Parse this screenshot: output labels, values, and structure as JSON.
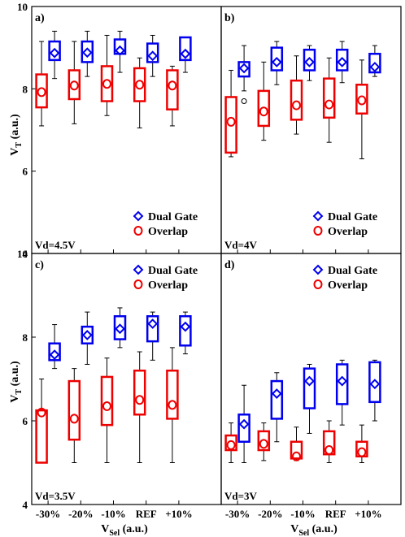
{
  "figure": {
    "xlabel_main": "V",
    "xlabel_sub": "Sel",
    "xlabel_unit": " (a.u.)",
    "ylabel_main": "V",
    "ylabel_sub": "T",
    "ylabel_unit": " (a.u.)"
  },
  "chart_data": [
    {
      "type": "box",
      "panel": "a)",
      "condition": "Vd=4.5V",
      "categories": [
        "-30%",
        "-20%",
        "-10%",
        "REF",
        "+10%"
      ],
      "ylim": [
        4,
        10
      ],
      "yticks": [
        4,
        6,
        8,
        10
      ],
      "legend": "bottom-right",
      "series": [
        {
          "name": "Dual Gate",
          "color": "#0000ee",
          "marker": "diamond",
          "boxes": [
            {
              "whisker_low": 8.25,
              "q1": 8.7,
              "mean": 8.87,
              "q3": 9.15,
              "whisker_high": 9.4
            },
            {
              "whisker_low": 8.3,
              "q1": 8.65,
              "mean": 8.88,
              "q3": 9.15,
              "whisker_high": 9.4
            },
            {
              "whisker_low": 8.4,
              "q1": 8.85,
              "mean": 8.93,
              "q3": 9.2,
              "whisker_high": 9.4
            },
            {
              "whisker_low": 8.3,
              "q1": 8.65,
              "mean": 8.8,
              "q3": 9.1,
              "whisker_high": 9.3
            },
            {
              "whisker_low": 8.4,
              "q1": 8.7,
              "mean": 8.85,
              "q3": 9.25,
              "whisker_high": 9.25
            }
          ]
        },
        {
          "name": "Overlap",
          "color": "#ee0000",
          "marker": "circle",
          "boxes": [
            {
              "whisker_low": 7.1,
              "q1": 7.55,
              "mean": 7.92,
              "q3": 8.35,
              "whisker_high": 9.15
            },
            {
              "whisker_low": 7.15,
              "q1": 7.75,
              "mean": 8.08,
              "q3": 8.45,
              "whisker_high": 9.15
            },
            {
              "whisker_low": 7.35,
              "q1": 7.7,
              "mean": 8.12,
              "q3": 8.55,
              "whisker_high": 9.3
            },
            {
              "whisker_low": 7.05,
              "q1": 7.7,
              "mean": 8.1,
              "q3": 8.5,
              "whisker_high": 8.75
            },
            {
              "whisker_low": 7.1,
              "q1": 7.5,
              "mean": 8.08,
              "q3": 8.45,
              "whisker_high": 8.55
            }
          ]
        }
      ]
    },
    {
      "type": "box",
      "panel": "b)",
      "condition": "Vd=4V",
      "categories": [
        "-30%",
        "-20%",
        "-10%",
        "REF",
        "+10%"
      ],
      "ylim": [
        4,
        10
      ],
      "yticks": [
        4,
        6,
        8,
        10
      ],
      "legend": "bottom-right",
      "series": [
        {
          "name": "Dual Gate",
          "color": "#0000ee",
          "marker": "diamond",
          "boxes": [
            {
              "whisker_low": 7.95,
              "q1": 8.3,
              "mean": 8.5,
              "q3": 8.65,
              "whisker_high": 9.05
            },
            {
              "whisker_low": 8.1,
              "q1": 8.45,
              "mean": 8.65,
              "q3": 9.0,
              "whisker_high": 9.15
            },
            {
              "whisker_low": 8.2,
              "q1": 8.45,
              "mean": 8.65,
              "q3": 8.95,
              "whisker_high": 9.05
            },
            {
              "whisker_low": 8.15,
              "q1": 8.45,
              "mean": 8.65,
              "q3": 8.95,
              "whisker_high": 9.15
            },
            {
              "whisker_low": 8.3,
              "q1": 8.4,
              "mean": 8.53,
              "q3": 8.85,
              "whisker_high": 9.05
            }
          ],
          "outliers": [
            {
              "category": "-30%",
              "value": 7.7
            }
          ]
        },
        {
          "name": "Overlap",
          "color": "#ee0000",
          "marker": "circle",
          "boxes": [
            {
              "whisker_low": 6.35,
              "q1": 6.45,
              "mean": 7.2,
              "q3": 7.8,
              "whisker_high": 8.45
            },
            {
              "whisker_low": 6.75,
              "q1": 7.1,
              "mean": 7.45,
              "q3": 7.95,
              "whisker_high": 8.65
            },
            {
              "whisker_low": 6.9,
              "q1": 7.25,
              "mean": 7.6,
              "q3": 8.2,
              "whisker_high": 8.8
            },
            {
              "whisker_low": 6.7,
              "q1": 7.3,
              "mean": 7.62,
              "q3": 8.25,
              "whisker_high": 8.75
            },
            {
              "whisker_low": 6.3,
              "q1": 7.4,
              "mean": 7.72,
              "q3": 8.1,
              "whisker_high": 8.7
            }
          ]
        }
      ]
    },
    {
      "type": "box",
      "panel": "c)",
      "condition": "Vd=3.5V",
      "categories": [
        "-30%",
        "-20%",
        "-10%",
        "REF",
        "+10%"
      ],
      "ylim": [
        4,
        10
      ],
      "yticks": [
        4,
        6,
        8,
        10
      ],
      "legend": "top-right",
      "series": [
        {
          "name": "Dual Gate",
          "color": "#0000ee",
          "marker": "diamond",
          "boxes": [
            {
              "whisker_low": 7.25,
              "q1": 7.45,
              "mean": 7.58,
              "q3": 7.85,
              "whisker_high": 8.3
            },
            {
              "whisker_low": 7.35,
              "q1": 7.85,
              "mean": 8.05,
              "q3": 8.25,
              "whisker_high": 8.6
            },
            {
              "whisker_low": 7.75,
              "q1": 7.95,
              "mean": 8.2,
              "q3": 8.5,
              "whisker_high": 8.7
            },
            {
              "whisker_low": 7.45,
              "q1": 7.9,
              "mean": 8.32,
              "q3": 8.5,
              "whisker_high": 8.6
            },
            {
              "whisker_low": 7.6,
              "q1": 7.8,
              "mean": 8.25,
              "q3": 8.5,
              "whisker_high": 8.6
            }
          ]
        },
        {
          "name": "Overlap",
          "color": "#ee0000",
          "marker": "circle",
          "boxes": [
            {
              "whisker_low": 5.0,
              "q1": 5.0,
              "mean": 6.2,
              "q3": 6.25,
              "whisker_high": 7.0
            },
            {
              "whisker_low": 5.0,
              "q1": 5.55,
              "mean": 6.05,
              "q3": 6.95,
              "whisker_high": 7.25
            },
            {
              "whisker_low": 5.0,
              "q1": 5.9,
              "mean": 6.35,
              "q3": 7.05,
              "whisker_high": 7.5
            },
            {
              "whisker_low": 5.0,
              "q1": 6.15,
              "mean": 6.5,
              "q3": 7.2,
              "whisker_high": 7.65
            },
            {
              "whisker_low": 5.0,
              "q1": 6.05,
              "mean": 6.38,
              "q3": 7.2,
              "whisker_high": 7.75
            }
          ]
        }
      ]
    },
    {
      "type": "box",
      "panel": "d)",
      "condition": "Vd=3V",
      "categories": [
        "-30%",
        "-20%",
        "-10%",
        "REF",
        "+10%"
      ],
      "ylim": [
        4,
        10
      ],
      "yticks": [
        4,
        6,
        8,
        10
      ],
      "legend": "top-right",
      "series": [
        {
          "name": "Dual Gate",
          "color": "#0000ee",
          "marker": "diamond",
          "boxes": [
            {
              "whisker_low": 5.0,
              "q1": 5.5,
              "mean": 5.92,
              "q3": 6.15,
              "whisker_high": 6.85
            },
            {
              "whisker_low": 5.5,
              "q1": 6.05,
              "mean": 6.65,
              "q3": 6.95,
              "whisker_high": 7.15
            },
            {
              "whisker_low": 5.7,
              "q1": 6.3,
              "mean": 6.95,
              "q3": 7.25,
              "whisker_high": 7.35
            },
            {
              "whisker_low": 5.9,
              "q1": 6.4,
              "mean": 6.95,
              "q3": 7.35,
              "whisker_high": 7.45
            },
            {
              "whisker_low": 6.0,
              "q1": 6.45,
              "mean": 6.88,
              "q3": 7.4,
              "whisker_high": 7.45
            }
          ]
        },
        {
          "name": "Overlap",
          "color": "#ee0000",
          "marker": "circle",
          "boxes": [
            {
              "whisker_low": 5.0,
              "q1": 5.3,
              "mean": 5.42,
              "q3": 5.65,
              "whisker_high": 5.95
            },
            {
              "whisker_low": 5.05,
              "q1": 5.3,
              "mean": 5.45,
              "q3": 5.75,
              "whisker_high": 5.95
            },
            {
              "whisker_low": 5.05,
              "q1": 5.1,
              "mean": 5.15,
              "q3": 5.5,
              "whisker_high": 5.85
            },
            {
              "whisker_low": 5.0,
              "q1": 5.2,
              "mean": 5.3,
              "q3": 5.75,
              "whisker_high": 6.0
            },
            {
              "whisker_low": 5.0,
              "q1": 5.15,
              "mean": 5.25,
              "q3": 5.5,
              "whisker_high": 5.9
            }
          ]
        }
      ]
    }
  ]
}
